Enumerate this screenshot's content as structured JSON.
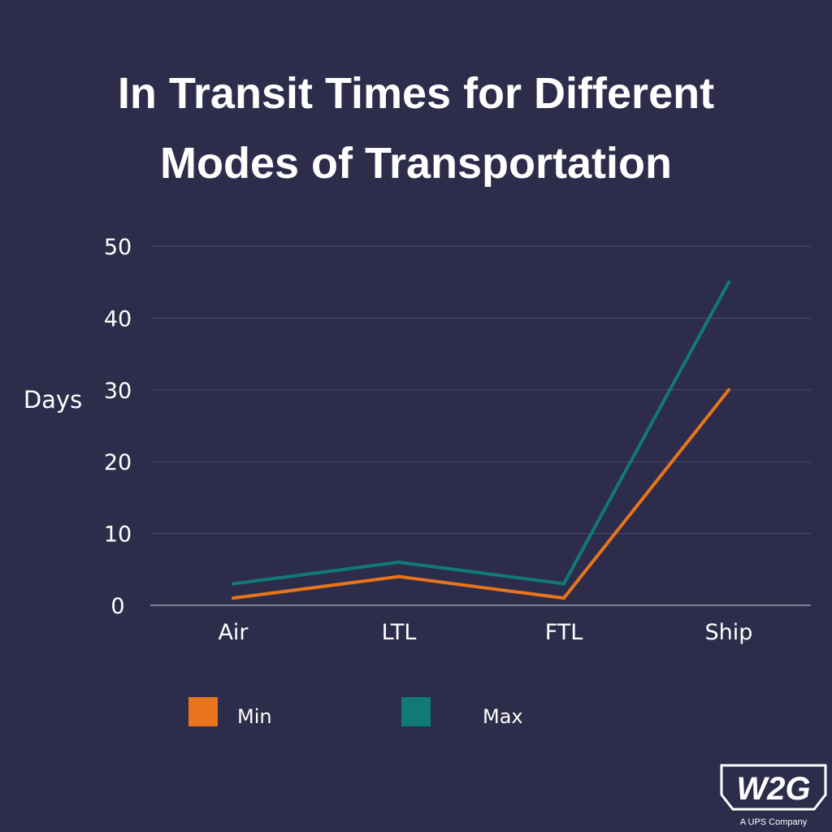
{
  "colors": {
    "background": "#2d2d4b",
    "min": "#e8751c",
    "max": "#107a77",
    "grid": "#4c4c68",
    "axis": "#9a9ab0",
    "text": "#ffffff"
  },
  "chart_data": {
    "type": "line",
    "title_lines": [
      "In Transit Times for Different",
      "Modes of Transportation"
    ],
    "xlabel": "",
    "ylabel": "Days",
    "categories": [
      "Air",
      "LTL",
      "FTL",
      "Ship"
    ],
    "series": [
      {
        "name": "Min",
        "color": "#e8751c",
        "values": [
          1,
          4,
          1,
          30
        ]
      },
      {
        "name": "Max",
        "color": "#107a77",
        "values": [
          3,
          6,
          3,
          45
        ]
      }
    ],
    "ylim": [
      0,
      50
    ],
    "yticks": [
      0,
      10,
      20,
      30,
      40,
      50
    ],
    "grid": true,
    "legend": "bottom"
  },
  "logo": {
    "text": "W2G",
    "tagline": "A UPS Company"
  }
}
